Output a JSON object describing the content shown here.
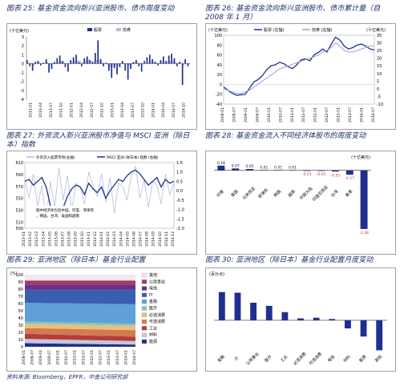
{
  "source_note": "资料来源: Bloomberg，EPFR，中金公司研究部",
  "charts": [
    {
      "key": "c25",
      "title": "图表 25: 基金资金流向新兴亚洲股市、债市周度变动"
    },
    {
      "key": "c26",
      "title": "图表 26: 基金资金流向新兴亚洲股市、债市累计量（自 2008 年 1 月）"
    },
    {
      "key": "c27",
      "title": "图表 27: 外资流入新兴亚洲股市净值与 MSCI 亚洲（除日本）指数"
    },
    {
      "key": "c28",
      "title": "图表 28: 基金资金流入不同经济体股市的周度变动"
    },
    {
      "key": "c29",
      "title": "图表 29: 亚洲地区（除日本）基金行业配置"
    },
    {
      "key": "c30",
      "title": "图表 30: 亚洲地区（除日本）基金行业配置月度变动"
    }
  ],
  "chart_data": [
    {
      "id": "c25",
      "type": "bar",
      "ylabel": "(十亿美元)",
      "ylim": [
        -4,
        3
      ],
      "yticks": [
        "3",
        "2",
        "1",
        "0",
        "-1",
        "-2",
        "-3",
        "-4"
      ],
      "legend": [
        "股票",
        "债券"
      ],
      "xlabels": [
        "2011-01",
        "2011-04",
        "2011-07",
        "2011-10",
        "2012-01",
        "2012-04",
        "2012-07",
        "2012-10",
        "2013-01",
        "2013-04",
        "2013-07",
        "2013-10",
        "2014-01",
        "2014-04",
        "2014-07",
        "2014-10"
      ],
      "series": [
        {
          "name": "股票",
          "color": "#1f2f8f",
          "values": [
            0.4,
            -0.3,
            -0.8,
            0.2,
            0.3,
            -0.2,
            0.1,
            0.5,
            -1.0,
            -0.6,
            0.2,
            0.6,
            0.9,
            0.3,
            -0.4,
            -0.9,
            0.4,
            0.7,
            1.0,
            0.2,
            -0.3,
            0.6,
            0.8,
            0.4,
            0.2,
            1.2,
            2.6,
            0.5,
            -0.3,
            0.1,
            -0.8,
            -1.6,
            -0.5,
            -1.2,
            -0.4,
            0.3,
            -0.8,
            -1.8,
            -0.6,
            0.2,
            0.4,
            -0.3,
            -0.9,
            0.3,
            0.7,
            1.0,
            0.5,
            0.2,
            -0.2,
            0.4,
            0.8,
            0.3,
            0.9,
            1.1,
            0.6,
            -0.3,
            0.2,
            -2.4,
            0.5,
            -0.3
          ]
        },
        {
          "name": "债券",
          "color": "#b8bcd8",
          "values": [
            0.1,
            0.0,
            -0.2,
            0.1,
            0.2,
            0.1,
            0.1,
            0.2,
            -0.1,
            0.0,
            0.1,
            0.2,
            0.3,
            0.2,
            0.1,
            -0.1,
            0.2,
            0.3,
            0.4,
            0.3,
            0.2,
            0.3,
            0.5,
            0.3,
            0.2,
            0.4,
            0.5,
            0.2,
            0.1,
            -0.1,
            -0.4,
            -0.3,
            -0.2,
            -0.2,
            0.1,
            0.1,
            -0.1,
            -0.2,
            0.0,
            0.1,
            0.2,
            0.1,
            -0.1,
            0.1,
            0.2,
            0.3,
            0.2,
            0.1,
            0.1,
            0.2,
            0.2,
            0.2,
            0.3,
            0.3,
            0.2,
            0.1,
            0.1,
            -0.2,
            0.1,
            0.0
          ]
        }
      ]
    },
    {
      "id": "c26",
      "type": "line",
      "ylabel_left": "(十亿美元)",
      "ylabel_right": "(十亿美元)",
      "ylim_left": [
        -40,
        100
      ],
      "ylim_right": [
        -10,
        35
      ],
      "yticks_left": [
        "100",
        "80",
        "60",
        "40",
        "20",
        "0",
        "-20",
        "-40"
      ],
      "yticks_right": [
        "35",
        "30",
        "25",
        "20",
        "15",
        "10",
        "5",
        "0",
        "-5",
        "-10"
      ],
      "legend": [
        "股票 (左轴)",
        "债券 (右轴)"
      ],
      "xlabels": [
        "2008-01",
        "2008-07",
        "2009-01",
        "2009-07",
        "2010-01",
        "2010-07",
        "2011-01",
        "2011-07",
        "2012-01",
        "2012-07",
        "2013-01",
        "2013-07",
        "2014-01",
        "2014-07"
      ],
      "series": [
        {
          "name": "股票 (左轴)",
          "color": "#1f2f8f",
          "axis": "left",
          "values": [
            -5,
            -12,
            -18,
            -22,
            -21,
            -20,
            -8,
            5,
            10,
            18,
            30,
            38,
            40,
            45,
            42,
            36,
            32,
            40,
            50,
            52,
            48,
            60,
            65,
            72,
            66,
            82,
            96,
            90,
            78,
            72,
            75,
            80,
            82,
            78,
            72,
            70
          ]
        },
        {
          "name": "债券 (右轴)",
          "color": "#9aa0d8",
          "axis": "right",
          "values": [
            0,
            -1,
            -2,
            -3,
            -3,
            -2,
            -1,
            1,
            3,
            5,
            7,
            9,
            11,
            13,
            14,
            15,
            16,
            17,
            18,
            19,
            20,
            21,
            22,
            24,
            25,
            27,
            30,
            28,
            25,
            24,
            24,
            25,
            26,
            27,
            28,
            28
          ]
        }
      ]
    },
    {
      "id": "c27",
      "type": "line",
      "ylim_left": [
        500,
        610
      ],
      "ylim_right": [
        -2,
        1.5
      ],
      "yticks_left": [
        "610",
        "590",
        "570",
        "550",
        "530",
        "510",
        "500"
      ],
      "yticks_right": [
        "1.5",
        "1.0",
        "0.5",
        "0.0",
        "-0.5",
        "-1.0",
        "-1.5",
        "-2.0"
      ],
      "legend": [
        "外资流入股票市场(左轴)",
        "MSCI 亚洲 (除日本) 指数 (右轴)"
      ],
      "annotation": "图中经济体包括中国、印度、菲律宾、韩国、台湾、泰国和越南",
      "xlabels": [
        "2013-01",
        "2013-02",
        "2013-03",
        "2013-04",
        "2013-05",
        "2013-06",
        "2013-07",
        "2013-08",
        "2013-09",
        "2013-10",
        "2013-11",
        "2013-12",
        "2014-01",
        "2014-02",
        "2014-03",
        "2014-04",
        "2014-05",
        "2014-06",
        "2014-07",
        "2014-08",
        "2014-09",
        "2014-10",
        "2014-11",
        "2014-12"
      ],
      "series": [
        {
          "name": "外资流入股票市场(左轴)",
          "color": "#b8bcd8",
          "values": [
            0.6,
            -0.4,
            0.9,
            -0.8,
            0.3,
            -1.6,
            0.5,
            -0.9,
            1.2,
            -0.5,
            0.8,
            -1.1,
            0.4,
            0.2,
            -0.7,
            1.0,
            0.3,
            -0.3,
            0.9,
            -0.6,
            0.7,
            -1.2,
            0.4,
            0.2,
            -0.5,
            0.8,
            1.3,
            -0.4,
            0.6,
            -0.9,
            0.5,
            0.3,
            -0.7,
            0.9,
            -0.2,
            0.4
          ]
        },
        {
          "name": "MSCI 亚洲 (除日本) 指数 (右轴)",
          "color": "#1f2f8f",
          "values": [
            0.5,
            0.6,
            0.3,
            0.5,
            0.7,
            0.2,
            -0.8,
            -1.4,
            -1.0,
            -0.9,
            -0.3,
            0.1,
            0.3,
            0.2,
            -0.2,
            0.4,
            0.1,
            -0.1,
            0.2,
            -0.4,
            0.0,
            0.3,
            0.6,
            0.5,
            0.8,
            1.0,
            1.1,
            0.9,
            0.6,
            0.3,
            0.5,
            0.7,
            0.2,
            0.6,
            0.4,
            0.5
          ]
        }
      ]
    },
    {
      "id": "c28",
      "type": "bar",
      "ylabel": "(十亿美元)",
      "ylim": [
        -2.5,
        0.3
      ],
      "categories": [
        "印度",
        "泰国",
        "马来西亚",
        "菲律宾",
        "韩国",
        "越南",
        "中国大陆",
        "印度尼西亚",
        "台湾",
        "香港"
      ],
      "values": [
        0.18,
        0.07,
        0.05,
        0.01,
        0.01,
        0.01,
        -0.01,
        -0.01,
        -0.05,
        -0.17
      ],
      "value_labels": [
        "0.18",
        "0.07",
        "0.05",
        "0.01",
        "0.01",
        "0.01",
        "-0.01",
        "-0.01",
        "-0.05",
        "-0.17"
      ],
      "extra_value": -2.28,
      "extra_label": "-2.28",
      "color": "#1f2f8f"
    },
    {
      "id": "c29",
      "type": "area",
      "ylabel": "(%)",
      "ylim": [
        0,
        100
      ],
      "yticks": [
        "100",
        "90",
        "80",
        "70",
        "60",
        "50",
        "40",
        "30",
        "20",
        "10",
        "0"
      ],
      "xlabels": [
        "2008-01",
        "2008-07",
        "2009-01",
        "2009-07",
        "2010-01",
        "2010-07",
        "2011-01",
        "2011-07",
        "2012-01",
        "2012-07",
        "2013-01",
        "2013-07",
        "2014-01",
        "2014-07"
      ],
      "legend": [
        {
          "name": "其他",
          "color": "#f2e6f0"
        },
        {
          "name": "公用事业",
          "color": "#a13a6d"
        },
        {
          "name": "电信",
          "color": "#6a2f86"
        },
        {
          "name": "IT",
          "color": "#3a5fb0"
        },
        {
          "name": "金融",
          "color": "#5fa0d8"
        },
        {
          "name": "医疗",
          "color": "#7fc6c2"
        },
        {
          "name": "必选消费",
          "color": "#ecbe7a"
        },
        {
          "name": "可选消费",
          "color": "#d27a52"
        },
        {
          "name": "工业",
          "color": "#b63b3b"
        },
        {
          "name": "材料",
          "color": "#c5c7d6"
        },
        {
          "name": "能源",
          "color": "#1f2f8f"
        }
      ],
      "series_values": [
        [
          8,
          8
        ],
        [
          6,
          6
        ],
        [
          7,
          7
        ],
        [
          18,
          20
        ],
        [
          26,
          27
        ],
        [
          3,
          3
        ],
        [
          6,
          6
        ],
        [
          8,
          9
        ],
        [
          7,
          6
        ],
        [
          6,
          5
        ],
        [
          5,
          3
        ]
      ]
    },
    {
      "id": "c30",
      "type": "bar",
      "ylabel": "(百分点)",
      "ylim": [
        -0.5,
        0.6
      ],
      "categories": [
        "金融",
        "IT",
        "公用事业",
        "医疗",
        "工业",
        "必选消费",
        "可选消费",
        "电信",
        "材料",
        "能源",
        "其他"
      ],
      "values": [
        0.45,
        0.44,
        0.28,
        0.23,
        0.13,
        0.03,
        0.04,
        0.02,
        -0.13,
        -0.26,
        -0.48
      ],
      "color": "#1f2f8f"
    }
  ]
}
